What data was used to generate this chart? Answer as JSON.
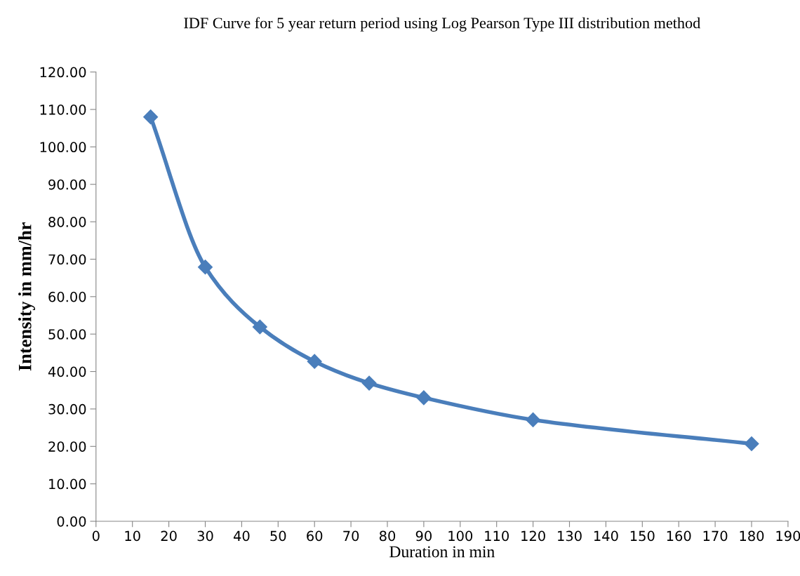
{
  "chart_data": {
    "type": "line",
    "title": "IDF Curve for 5 year return period using Log Pearson Type III distribution method",
    "xlabel": "Duration in min",
    "ylabel": "Intensity in mm/hr",
    "x": [
      15,
      30,
      45,
      60,
      75,
      90,
      120,
      180
    ],
    "series": [
      {
        "color": "#4a7ebb",
        "values": [
          108.0,
          67.9,
          51.9,
          42.7,
          36.9,
          33.0,
          27.1,
          20.7
        ]
      }
    ],
    "marker": "diamond",
    "line_style": "solid",
    "grid": false,
    "legend": false,
    "xlim": [
      0,
      190
    ],
    "xticks": [
      0,
      10,
      20,
      30,
      40,
      50,
      60,
      70,
      80,
      90,
      100,
      110,
      120,
      130,
      140,
      150,
      160,
      170,
      180,
      190
    ],
    "ylim": [
      0,
      120
    ],
    "yticks": [
      {
        "value": 0,
        "label": "0.00"
      },
      {
        "value": 10,
        "label": "10.00"
      },
      {
        "value": 20,
        "label": "20.00"
      },
      {
        "value": 30,
        "label": "30.00"
      },
      {
        "value": 40,
        "label": "40.00"
      },
      {
        "value": 50,
        "label": "50.00"
      },
      {
        "value": 60,
        "label": "60.00"
      },
      {
        "value": 70,
        "label": "70.00"
      },
      {
        "value": 80,
        "label": "80.00"
      },
      {
        "value": 90,
        "label": "90.00"
      },
      {
        "value": 100,
        "label": "100.00"
      },
      {
        "value": 110,
        "label": "110.00"
      },
      {
        "value": 120,
        "label": "120.00"
      }
    ]
  }
}
